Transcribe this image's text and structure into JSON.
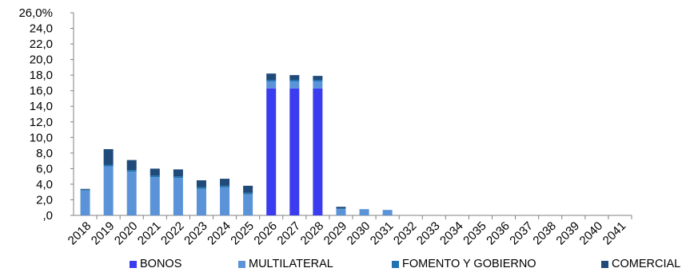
{
  "chart_data": {
    "type": "bar",
    "stacked": true,
    "categories": [
      "2018",
      "2019",
      "2020",
      "2021",
      "2022",
      "2023",
      "2024",
      "2025",
      "2026",
      "2027",
      "2028",
      "2029",
      "2030",
      "2031",
      "2032",
      "2033",
      "2034",
      "2035",
      "2036",
      "2037",
      "2038",
      "2039",
      "2040",
      "2041"
    ],
    "series": [
      {
        "name": "BONOS",
        "color": "#3b3bf0",
        "values": [
          0,
          0,
          0,
          0,
          0,
          0,
          0,
          0,
          16.3,
          16.3,
          16.3,
          0,
          0,
          0,
          0,
          0,
          0,
          0,
          0,
          0,
          0,
          0,
          0,
          0
        ]
      },
      {
        "name": "MULTILATERAL",
        "color": "#5b93d8",
        "values": [
          3.2,
          6.3,
          5.6,
          4.9,
          4.8,
          3.4,
          3.6,
          2.7,
          0.9,
          0.9,
          0.9,
          0.8,
          0.8,
          0.7,
          0,
          0,
          0,
          0,
          0,
          0,
          0,
          0,
          0,
          0
        ]
      },
      {
        "name": "FOMENTO Y GOBIERNO",
        "color": "#1f73b0",
        "values": [
          0.1,
          0.2,
          0.2,
          0.2,
          0.2,
          0.2,
          0.2,
          0.2,
          0.2,
          0.2,
          0.2,
          0.1,
          0,
          0,
          0,
          0,
          0,
          0,
          0,
          0,
          0,
          0,
          0,
          0
        ]
      },
      {
        "name": "COMERCIAL",
        "color": "#1f4a7a",
        "values": [
          0.1,
          2.0,
          1.3,
          0.9,
          0.9,
          0.9,
          0.9,
          0.9,
          0.8,
          0.6,
          0.5,
          0.2,
          0,
          0,
          0,
          0,
          0,
          0,
          0,
          0,
          0,
          0,
          0,
          0
        ]
      }
    ],
    "y_ticks": [
      ",0",
      "2,0",
      "4,0",
      "6,0",
      "8,0",
      "10,0",
      "12,0",
      "14,0",
      "16,0",
      "18,0",
      "20,0",
      "22,0",
      "24,0",
      "26,0%"
    ],
    "ylim": [
      0,
      26
    ],
    "grid": false,
    "legend_position": "bottom"
  }
}
